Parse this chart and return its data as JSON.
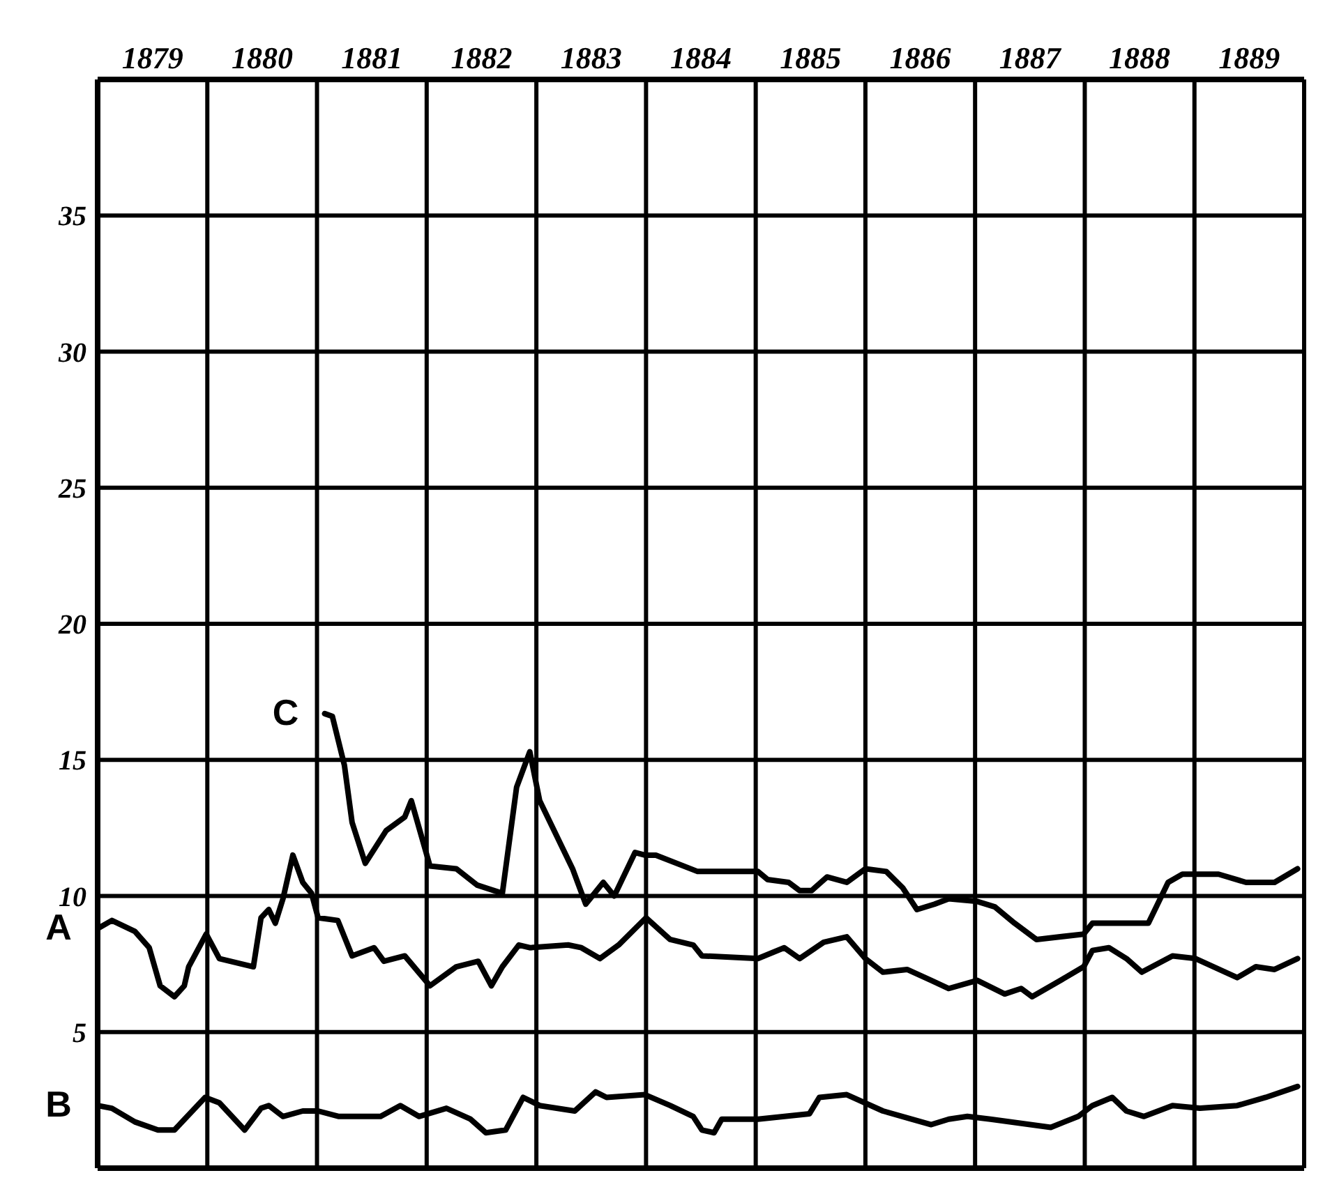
{
  "chart_data": {
    "type": "line",
    "xlim": [
      1879,
      1890
    ],
    "ylim": [
      0,
      40
    ],
    "xticks": [
      {
        "value": 1879,
        "label": null
      },
      {
        "value": 1879.5,
        "label": "1879"
      },
      {
        "value": 1880,
        "label": null
      },
      {
        "value": 1880.5,
        "label": "1880"
      },
      {
        "value": 1881,
        "label": null
      },
      {
        "value": 1881.5,
        "label": "1881"
      },
      {
        "value": 1882,
        "label": null
      },
      {
        "value": 1882.5,
        "label": "1882"
      },
      {
        "value": 1883,
        "label": null
      },
      {
        "value": 1883.5,
        "label": "1883"
      },
      {
        "value": 1884,
        "label": null
      },
      {
        "value": 1884.5,
        "label": "1884"
      },
      {
        "value": 1885,
        "label": null
      },
      {
        "value": 1885.5,
        "label": "1885"
      },
      {
        "value": 1886,
        "label": null
      },
      {
        "value": 1886.5,
        "label": "1886"
      },
      {
        "value": 1887,
        "label": null
      },
      {
        "value": 1887.5,
        "label": "1887"
      },
      {
        "value": 1888,
        "label": null
      },
      {
        "value": 1888.5,
        "label": "1888"
      },
      {
        "value": 1889,
        "label": null
      },
      {
        "value": 1889.5,
        "label": "1889"
      },
      {
        "value": 1890,
        "label": null
      }
    ],
    "yticks": [
      5,
      10,
      15,
      20,
      25,
      30,
      35
    ],
    "grid": true,
    "legend": false,
    "marker": "none",
    "line_style": "solid",
    "series": [
      {
        "name": "A",
        "color": "#000000",
        "x": [
          1879,
          1879.13,
          1879.34,
          1879.47,
          1879.57,
          1879.7,
          1879.79,
          1879.83,
          1879.99,
          1880.11,
          1880.42,
          1880.49,
          1880.56,
          1880.62,
          1880.69,
          1880.78,
          1880.87,
          1880.95,
          1881.01,
          1881.19,
          1881.32,
          1881.52,
          1881.61,
          1881.8,
          1882.03,
          1882.27,
          1882.47,
          1882.59,
          1882.69,
          1882.84,
          1882.94,
          1883.29,
          1883.41,
          1883.58,
          1883.75,
          1884,
          1884.22,
          1884.43,
          1884.51,
          1885.02,
          1885.26,
          1885.4,
          1885.62,
          1885.83,
          1886,
          1886.16,
          1886.38,
          1886.6,
          1886.76,
          1887.02,
          1887.27,
          1887.42,
          1887.52,
          1887.78,
          1887.99,
          1888.07,
          1888.22,
          1888.38,
          1888.52,
          1888.8,
          1889.01,
          1889.39,
          1889.56,
          1889.73,
          1889.94
        ],
        "values": [
          8.8,
          9.1,
          8.7,
          8.1,
          6.7,
          6.3,
          6.7,
          7.4,
          8.6,
          7.7,
          7.4,
          9.2,
          9.5,
          9.0,
          9.9,
          11.5,
          10.5,
          10.1,
          9.2,
          9.1,
          7.8,
          8.1,
          7.6,
          7.8,
          6.7,
          7.4,
          7.6,
          6.7,
          7.4,
          8.2,
          8.1,
          8.2,
          8.1,
          7.7,
          8.2,
          9.2,
          8.4,
          8.2,
          7.8,
          7.7,
          8.1,
          7.7,
          8.3,
          8.5,
          7.7,
          7.2,
          7.3,
          6.9,
          6.6,
          6.9,
          6.4,
          6.6,
          6.3,
          6.9,
          7.4,
          8.0,
          8.1,
          7.7,
          7.2,
          7.8,
          7.7,
          7.0,
          7.4,
          7.3,
          7.7
        ]
      },
      {
        "name": "B",
        "color": "#000000",
        "x": [
          1879,
          1879.13,
          1879.34,
          1879.55,
          1879.7,
          1879.98,
          1880.11,
          1880.34,
          1880.49,
          1880.56,
          1880.69,
          1880.87,
          1881.01,
          1881.2,
          1881.58,
          1881.76,
          1881.93,
          1882.18,
          1882.4,
          1882.54,
          1882.72,
          1882.88,
          1883.03,
          1883.35,
          1883.54,
          1883.64,
          1883.99,
          1884.22,
          1884.43,
          1884.51,
          1884.62,
          1884.69,
          1885.02,
          1885.49,
          1885.58,
          1885.83,
          1886.16,
          1886.42,
          1886.6,
          1886.76,
          1886.93,
          1887.14,
          1887.69,
          1887.94,
          1888.07,
          1888.25,
          1888.38,
          1888.54,
          1888.8,
          1889.05,
          1889.39,
          1889.65,
          1889.94
        ],
        "values": [
          2.3,
          2.2,
          1.7,
          1.4,
          1.4,
          2.6,
          2.4,
          1.4,
          2.2,
          2.3,
          1.9,
          2.1,
          2.1,
          1.9,
          1.9,
          2.3,
          1.9,
          2.2,
          1.8,
          1.3,
          1.4,
          2.6,
          2.3,
          2.1,
          2.8,
          2.6,
          2.7,
          2.3,
          1.9,
          1.4,
          1.3,
          1.8,
          1.8,
          2.0,
          2.6,
          2.7,
          2.1,
          1.8,
          1.6,
          1.8,
          1.9,
          1.8,
          1.5,
          1.9,
          2.3,
          2.6,
          2.1,
          1.9,
          2.3,
          2.2,
          2.3,
          2.6,
          3.0
        ]
      },
      {
        "name": "C",
        "color": "#000000",
        "x": [
          1881.07,
          1881.14,
          1881.25,
          1881.32,
          1881.44,
          1881.63,
          1881.8,
          1881.86,
          1882.03,
          1882.27,
          1882.46,
          1882.69,
          1882.82,
          1882.94,
          1883.03,
          1883.33,
          1883.45,
          1883.61,
          1883.71,
          1883.9,
          1883.99,
          1884.09,
          1884.47,
          1885.02,
          1885.11,
          1885.3,
          1885.4,
          1885.51,
          1885.65,
          1885.83,
          1886,
          1886.19,
          1886.34,
          1886.47,
          1886.63,
          1886.76,
          1887.02,
          1887.18,
          1887.36,
          1887.56,
          1887.99,
          1888.07,
          1888.58,
          1888.76,
          1888.89,
          1889.22,
          1889.47,
          1889.73,
          1889.94
        ],
        "values": [
          16.7,
          16.6,
          14.8,
          12.7,
          11.2,
          12.4,
          12.9,
          13.5,
          11.1,
          11.0,
          10.4,
          10.1,
          14.0,
          15.3,
          13.5,
          11.0,
          9.7,
          10.5,
          10.0,
          11.6,
          11.5,
          11.5,
          10.9,
          10.9,
          10.6,
          10.5,
          10.2,
          10.2,
          10.7,
          10.5,
          11.0,
          10.9,
          10.3,
          9.5,
          9.7,
          9.9,
          9.8,
          9.6,
          9.0,
          8.4,
          8.6,
          9.0,
          9.0,
          10.5,
          10.8,
          10.8,
          10.5,
          10.5,
          11.0
        ]
      }
    ]
  }
}
